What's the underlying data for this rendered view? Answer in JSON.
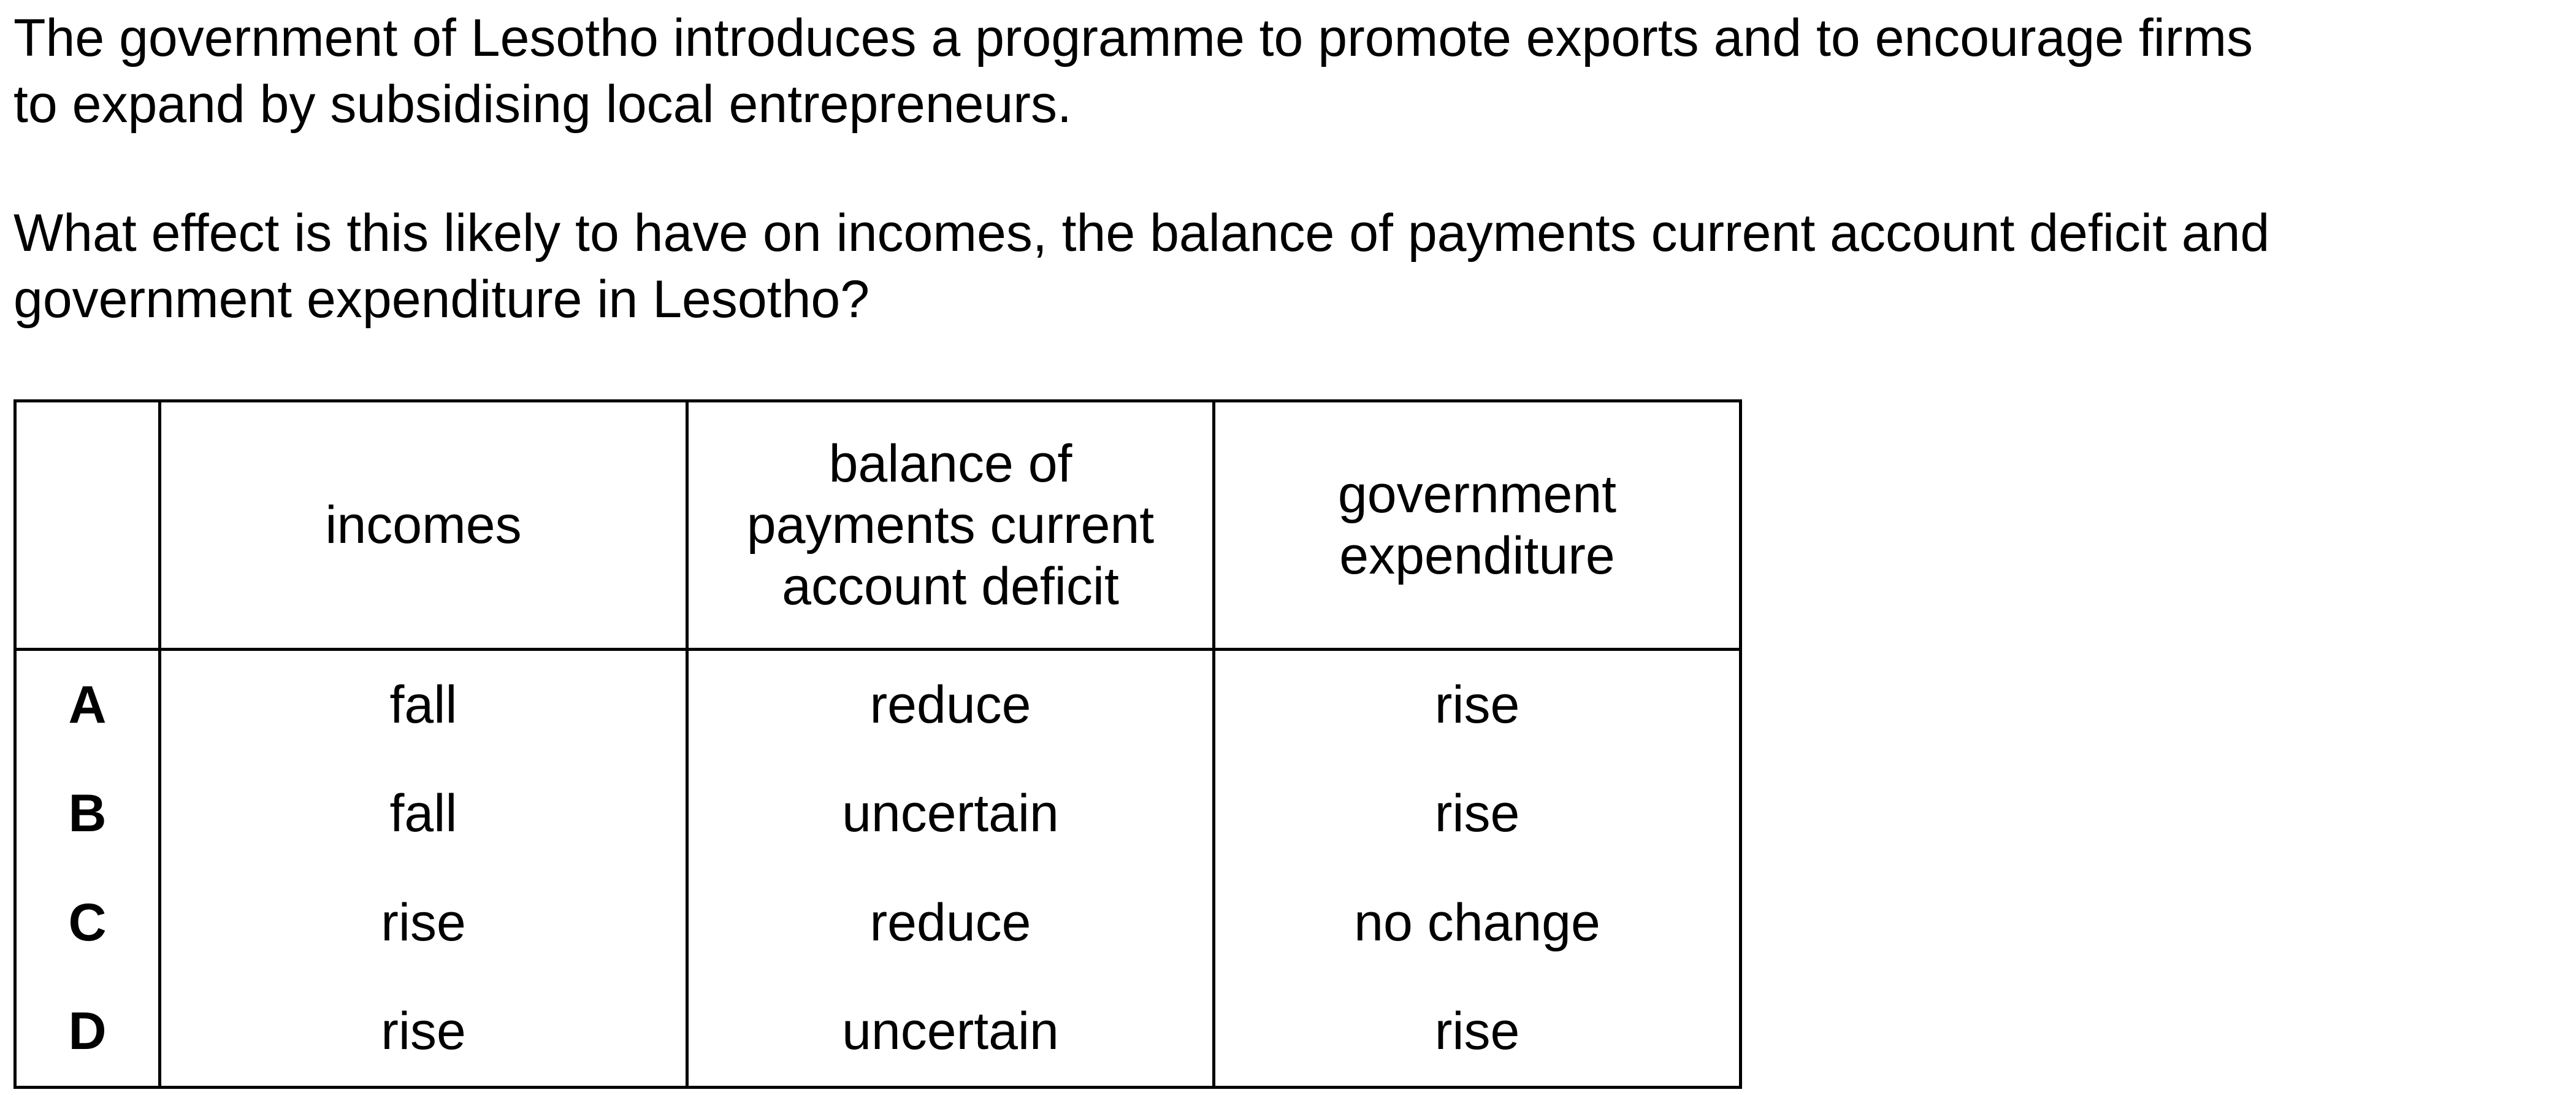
{
  "question": {
    "stem_lines": [
      "The government of Lesotho introduces a programme to promote exports and to encourage firms",
      "to expand by subsidising local entrepreneurs."
    ],
    "prompt_lines": [
      "What effect is this likely to have on incomes, the balance of payments current account deficit and",
      "government expenditure in Lesotho?"
    ]
  },
  "table": {
    "headers": [
      "",
      "incomes",
      "balance of\npayments current\naccount deficit",
      "government\nexpenditure"
    ],
    "rows": [
      {
        "option": "A",
        "incomes": "fall",
        "bop": "reduce",
        "gov": "rise"
      },
      {
        "option": "B",
        "incomes": "fall",
        "bop": "uncertain",
        "gov": "rise"
      },
      {
        "option": "C",
        "incomes": "rise",
        "bop": "reduce",
        "gov": "no change"
      },
      {
        "option": "D",
        "incomes": "rise",
        "bop": "uncertain",
        "gov": "rise"
      }
    ]
  }
}
